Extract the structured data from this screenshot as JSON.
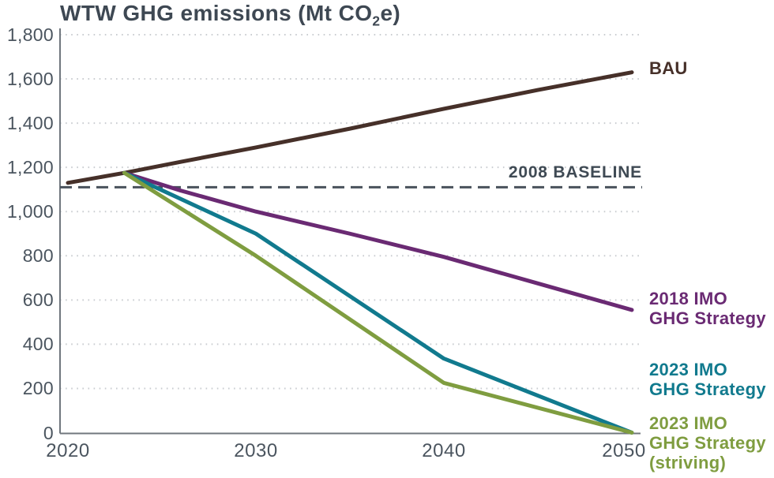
{
  "chart_data": {
    "type": "line",
    "title": {
      "pre": "WTW GHG emissions (Mt CO",
      "sub": "2",
      "post": "e)"
    },
    "x": {
      "min": 2020,
      "max": 2050,
      "ticks": [
        {
          "value": 2020,
          "label": "2020"
        },
        {
          "value": 2030,
          "label": "2030"
        },
        {
          "value": 2040,
          "label": "2040"
        },
        {
          "value": 2050,
          "label": "2050"
        }
      ]
    },
    "y": {
      "min": 0,
      "max": 1800,
      "tick_step": 200,
      "ticks": [
        {
          "value": 0,
          "label": "0"
        },
        {
          "value": 200,
          "label": "200"
        },
        {
          "value": 400,
          "label": "400"
        },
        {
          "value": 600,
          "label": "600"
        },
        {
          "value": 800,
          "label": "800"
        },
        {
          "value": 1000,
          "label": "1,000"
        },
        {
          "value": 1200,
          "label": "1,200"
        },
        {
          "value": 1400,
          "label": "1,400"
        },
        {
          "value": 1600,
          "label": "1,600"
        },
        {
          "value": 1800,
          "label": "1,800"
        }
      ]
    },
    "grid": true,
    "legend_position": "right",
    "baseline": {
      "label": "2008 BASELINE",
      "value": 1110,
      "color": "#49525c"
    },
    "series": [
      {
        "name": "bau",
        "label": "BAU",
        "color": "#463029",
        "x": [
          2020,
          2023,
          2026,
          2030,
          2035,
          2040,
          2045,
          2050
        ],
        "values": [
          1130,
          1175,
          1225,
          1290,
          1375,
          1465,
          1550,
          1630
        ]
      },
      {
        "name": "imo-2018",
        "label": "2018 IMO\nGHG Strategy",
        "color": "#6a2a73",
        "x": [
          2023,
          2026,
          2030,
          2035,
          2040,
          2045,
          2050
        ],
        "values": [
          1175,
          1095,
          1000,
          900,
          795,
          675,
          555
        ]
      },
      {
        "name": "imo-2023",
        "label": "2023 IMO\nGHG Strategy",
        "color": "#117a8e",
        "x": [
          2023,
          2030,
          2040,
          2050
        ],
        "values": [
          1175,
          900,
          335,
          0
        ]
      },
      {
        "name": "imo-2023-striving",
        "label": "2023 IMO\nGHG Strategy\n(striving)",
        "color": "#7f9d40",
        "x": [
          2023,
          2030,
          2040,
          2050
        ],
        "values": [
          1175,
          800,
          225,
          0
        ]
      }
    ],
    "style_colors": {
      "axis": "#70777e",
      "grid": "#c9ccd0",
      "tick_text": "#4b555f",
      "title_text": "#3e4853"
    }
  }
}
